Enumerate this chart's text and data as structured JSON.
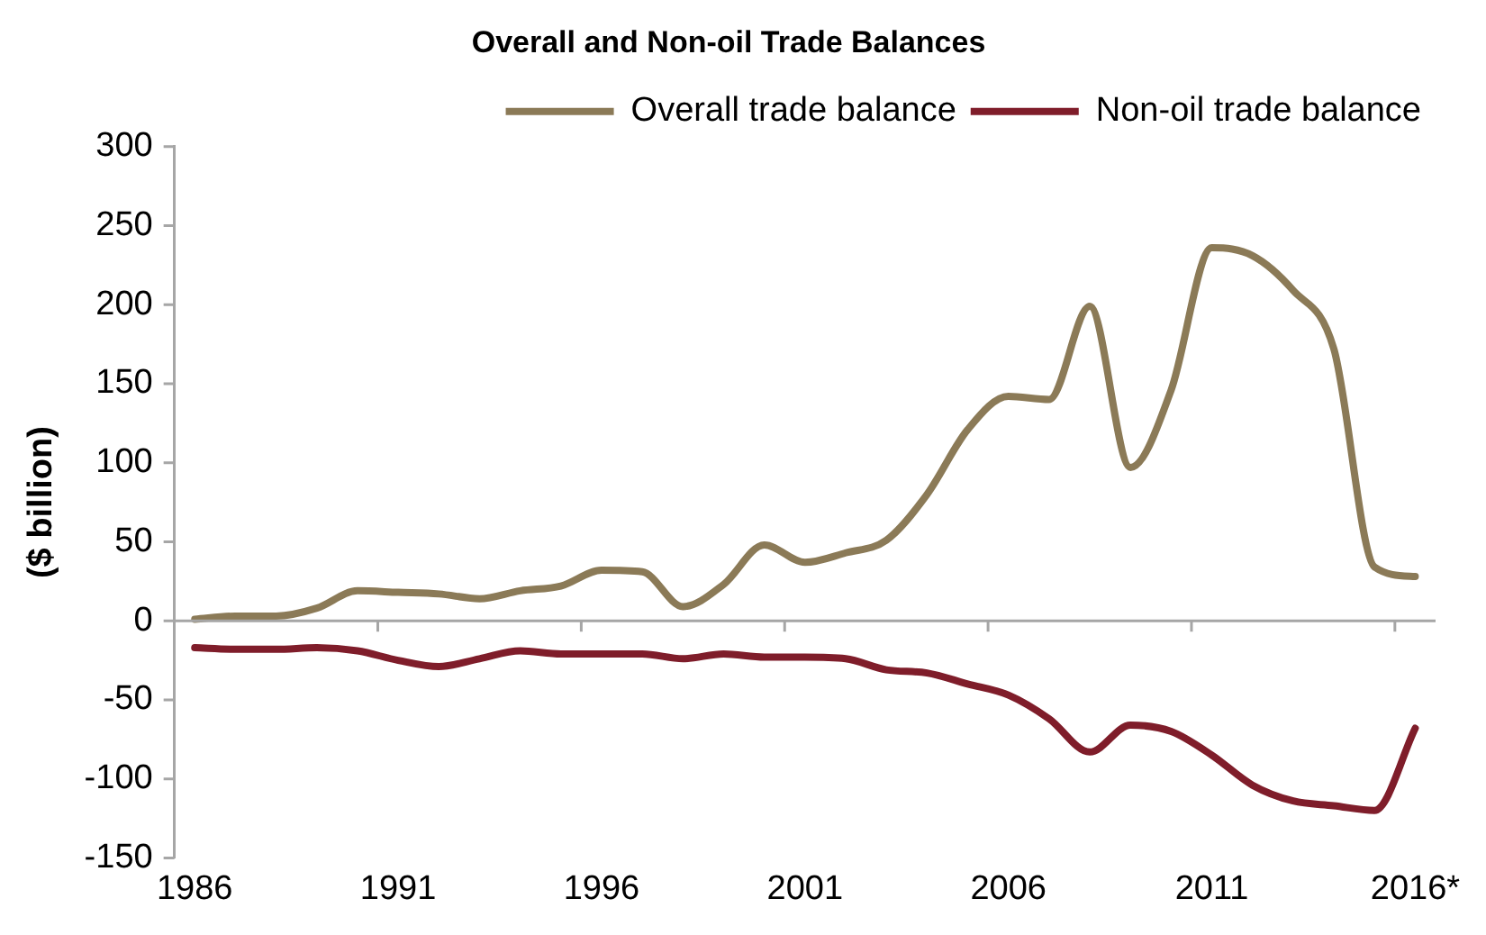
{
  "chart_data": {
    "type": "line",
    "title": "Overall and Non-oil Trade Balances",
    "ylabel": "($ billion)",
    "categories": [
      "1986",
      null,
      null,
      null,
      null,
      "1991",
      null,
      null,
      null,
      null,
      "1996",
      null,
      null,
      null,
      null,
      "2001",
      null,
      null,
      null,
      null,
      "2006",
      null,
      null,
      null,
      null,
      "2011",
      null,
      null,
      null,
      null,
      "2016*"
    ],
    "series": [
      {
        "name": "Overall trade balance",
        "color": "#8b7a57",
        "values": [
          1,
          3,
          3,
          8,
          19,
          18,
          17,
          14,
          19,
          22,
          32,
          31,
          9,
          23,
          48,
          37,
          43,
          51,
          80,
          121,
          142,
          140,
          199,
          97,
          146,
          236,
          231,
          209,
          172,
          34,
          28
        ]
      },
      {
        "name": "Non-oil trade balance",
        "color": "#7f1d2a",
        "values": [
          -17,
          -18,
          -18,
          -17,
          -19,
          -25,
          -29,
          -24,
          -19,
          -21,
          -21,
          -21,
          -24,
          -21,
          -23,
          -23,
          -24,
          -31,
          -33,
          -40,
          -47,
          -62,
          -83,
          -66,
          -70,
          -85,
          -104,
          -114,
          -117,
          -120,
          -68
        ]
      }
    ],
    "ylim": [
      -150,
      300
    ],
    "yticks": [
      -150,
      -100,
      -50,
      0,
      50,
      100,
      150,
      200,
      250,
      300
    ],
    "legend": "top right",
    "line_style": "solid",
    "marker": "none"
  }
}
